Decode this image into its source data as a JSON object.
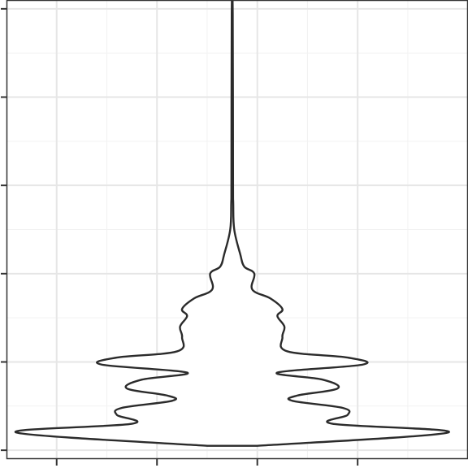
{
  "chart_data": {
    "type": "violin",
    "title": "",
    "xlabel": "",
    "ylabel": "",
    "x_tick_labels": [],
    "y_tick_labels": [],
    "grid": true,
    "legend": "none",
    "colors": {
      "background": "#ffffff",
      "grid_major": "#e6e6e6",
      "grid_minor": "#f2f2f2",
      "panel_border": "#333333",
      "violin_stroke": "#2b2b2b",
      "violin_fill": "#ffffff"
    },
    "xlim": [
      0,
      4.6
    ],
    "ylim": [
      0,
      5.2
    ],
    "x_major_ticks": [
      0.5,
      1.5,
      2.5,
      3.5
    ],
    "x_minor_ticks": [
      0,
      1,
      2,
      3,
      4
    ],
    "y_major_ticks": [
      0.1,
      1.1,
      2.1,
      3.1,
      4.1,
      5.1
    ],
    "y_minor_ticks": [
      0.6,
      1.6,
      2.6,
      3.6,
      4.6
    ],
    "violin": {
      "center_x": 2.25,
      "y_min": 0.15,
      "y_max": 5.05,
      "density_profile": [
        {
          "y": 0.15,
          "half_width": 0.25
        },
        {
          "y": 0.3,
          "half_width": 2.15
        },
        {
          "y": 0.4,
          "half_width": 1.0
        },
        {
          "y": 0.5,
          "half_width": 1.15
        },
        {
          "y": 0.58,
          "half_width": 1.1
        },
        {
          "y": 0.66,
          "half_width": 0.6
        },
        {
          "y": 0.72,
          "half_width": 0.65
        },
        {
          "y": 0.8,
          "half_width": 1.05
        },
        {
          "y": 0.9,
          "half_width": 0.9
        },
        {
          "y": 0.98,
          "half_width": 0.45
        },
        {
          "y": 1.07,
          "half_width": 1.3
        },
        {
          "y": 1.15,
          "half_width": 1.15
        },
        {
          "y": 1.22,
          "half_width": 0.55
        },
        {
          "y": 1.38,
          "half_width": 0.5
        },
        {
          "y": 1.5,
          "half_width": 0.52
        },
        {
          "y": 1.62,
          "half_width": 0.45
        },
        {
          "y": 1.7,
          "half_width": 0.5
        },
        {
          "y": 1.82,
          "half_width": 0.38
        },
        {
          "y": 1.92,
          "half_width": 0.2
        },
        {
          "y": 2.1,
          "half_width": 0.22
        },
        {
          "y": 2.18,
          "half_width": 0.12
        },
        {
          "y": 2.32,
          "half_width": 0.08
        },
        {
          "y": 2.6,
          "half_width": 0.02
        },
        {
          "y": 2.9,
          "half_width": 0.01
        },
        {
          "y": 3.2,
          "half_width": 0.008
        },
        {
          "y": 5.05,
          "half_width": 0.005
        }
      ]
    }
  }
}
